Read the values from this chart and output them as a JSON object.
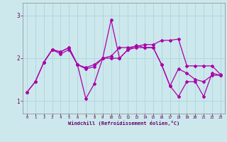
{
  "xlabel": "Windchill (Refroidissement éolien,°C)",
  "xlim": [
    -0.5,
    23.5
  ],
  "ylim": [
    0.7,
    3.3
  ],
  "yticks": [
    1,
    2,
    3
  ],
  "xticks": [
    0,
    1,
    2,
    3,
    4,
    5,
    6,
    7,
    8,
    9,
    10,
    11,
    12,
    13,
    14,
    15,
    16,
    17,
    18,
    19,
    20,
    21,
    22,
    23
  ],
  "bg_color": "#cce8ec",
  "grid_color": "#b0d8de",
  "line_color": "#aa00aa",
  "series": {
    "line1_x": [
      0,
      1,
      2,
      3,
      4,
      5,
      6,
      7,
      8,
      9,
      10,
      11,
      12,
      13,
      14,
      15,
      16,
      17,
      18,
      19,
      20,
      21,
      22,
      23
    ],
    "line1_y": [
      1.2,
      1.45,
      1.9,
      2.2,
      2.1,
      2.2,
      1.85,
      1.75,
      1.8,
      2.0,
      2.0,
      2.0,
      2.2,
      2.25,
      2.25,
      2.25,
      1.85,
      1.35,
      1.75,
      1.65,
      1.5,
      1.45,
      1.6,
      1.6
    ],
    "line2_x": [
      0,
      1,
      2,
      3,
      4,
      5,
      6,
      7,
      8,
      9,
      10,
      11,
      12,
      13,
      14,
      15,
      16,
      17,
      18,
      19,
      20,
      21,
      22,
      23
    ],
    "line2_y": [
      1.2,
      1.45,
      1.9,
      2.2,
      2.15,
      2.25,
      1.85,
      1.05,
      1.4,
      2.0,
      2.9,
      2.0,
      2.2,
      2.3,
      2.25,
      2.25,
      1.85,
      1.35,
      1.1,
      1.45,
      1.45,
      1.1,
      1.65,
      1.6
    ],
    "line3_x": [
      2,
      3,
      4,
      5,
      6,
      7,
      8,
      9,
      10,
      11,
      12,
      13,
      14,
      15,
      16,
      17,
      18,
      19,
      20,
      21,
      22,
      23
    ],
    "line3_y": [
      1.9,
      2.2,
      2.15,
      2.25,
      1.85,
      1.78,
      1.85,
      2.0,
      2.05,
      2.25,
      2.25,
      2.28,
      2.32,
      2.32,
      2.42,
      2.42,
      2.45,
      1.82,
      1.82,
      1.82,
      1.82,
      1.62
    ]
  }
}
